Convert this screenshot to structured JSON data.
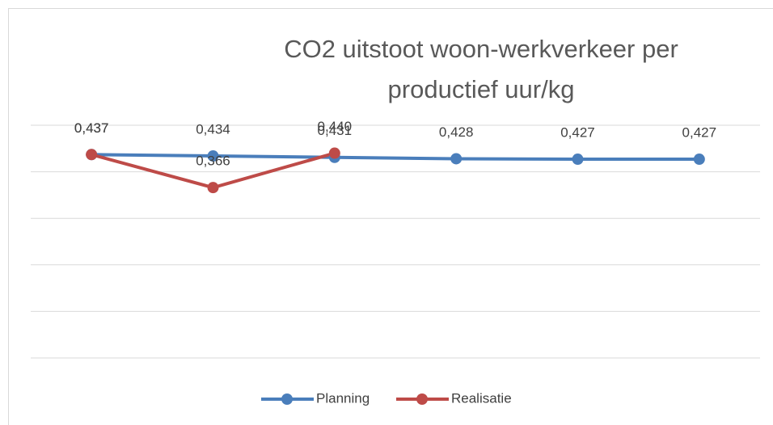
{
  "chart_data": {
    "type": "line",
    "title": "CO2 uitstoot woon-werkverkeer per productief uur/kg",
    "categories": [
      null,
      null,
      null,
      null,
      null,
      null
    ],
    "series": [
      {
        "name": "Planning",
        "color": "#4a7ebb",
        "values": [
          0.437,
          0.434,
          0.431,
          0.428,
          0.427,
          0.427
        ],
        "value_labels": [
          "0,437",
          "0,434",
          "0,431",
          "0,428",
          "0,427",
          "0,427"
        ]
      },
      {
        "name": "Realisatie",
        "color": "#be4b48",
        "values": [
          0.437,
          0.366,
          0.44,
          null,
          null,
          null
        ],
        "value_labels": [
          "0,437",
          "0,366",
          "0,440",
          null,
          null,
          null
        ]
      }
    ],
    "ylim": [
      0,
      0.5
    ],
    "yticks": [
      0,
      0.1,
      0.2,
      0.3,
      0.4,
      0.5
    ],
    "grid": true,
    "legend": "bottom"
  }
}
